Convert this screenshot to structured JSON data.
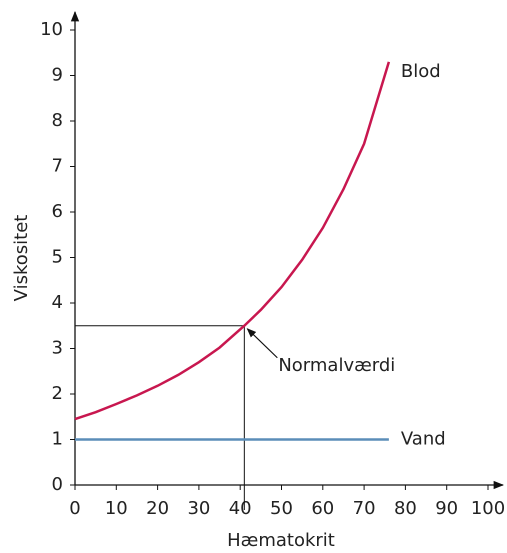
{
  "chart_data": {
    "type": "line",
    "x_label": "Hæmatokrit",
    "y_label": "Viskositet",
    "xlim": [
      0,
      100
    ],
    "ylim": [
      0,
      10
    ],
    "xticks": [
      0,
      10,
      20,
      30,
      40,
      50,
      60,
      70,
      80,
      90,
      100
    ],
    "yticks": [
      0,
      1,
      2,
      3,
      4,
      5,
      6,
      7,
      8,
      9,
      10
    ],
    "series": [
      {
        "name": "Blod",
        "color": "#c8174f",
        "x": [
          0,
          5,
          10,
          15,
          20,
          25,
          30,
          35,
          41,
          45,
          50,
          55,
          60,
          65,
          70,
          76
        ],
        "values": [
          1.45,
          1.6,
          1.78,
          1.97,
          2.18,
          2.42,
          2.7,
          3.02,
          3.5,
          3.85,
          4.35,
          4.95,
          5.65,
          6.5,
          7.5,
          9.3
        ]
      },
      {
        "name": "Vand",
        "color": "#5b8db8",
        "x": [
          0,
          76
        ],
        "values": [
          1,
          1
        ]
      }
    ],
    "annotations": [
      {
        "text": "Normalværdi",
        "x": 41,
        "y": 3.5
      }
    ]
  }
}
